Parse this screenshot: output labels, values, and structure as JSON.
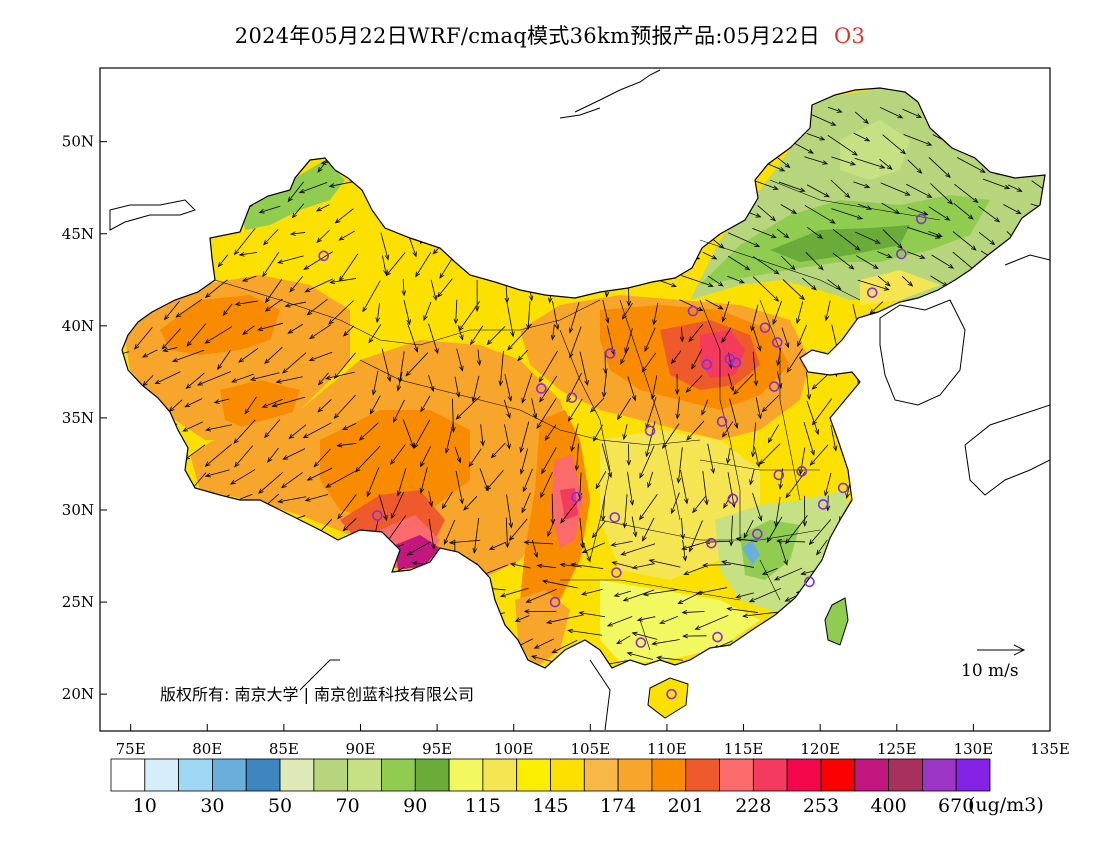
{
  "title": {
    "text": "2024年05月22日WRF/cmaq模式36km预报产品:05月22日",
    "species": "O3"
  },
  "axes": {
    "lat_labels": [
      "50N",
      "45N",
      "40N",
      "35N",
      "30N",
      "25N",
      "20N"
    ],
    "lat_values": [
      50,
      45,
      40,
      35,
      30,
      25,
      20
    ],
    "lon_labels": [
      "75E",
      "80E",
      "85E",
      "90E",
      "95E",
      "100E",
      "105E",
      "110E",
      "115E",
      "120E",
      "125E",
      "130E",
      "135E"
    ],
    "lon_values": [
      75,
      80,
      85,
      90,
      95,
      100,
      105,
      110,
      115,
      120,
      125,
      130,
      135
    ],
    "lon_range": [
      73,
      135
    ],
    "lat_range": [
      18,
      54
    ]
  },
  "wind_reference": {
    "label": "10 m/s",
    "speed": 10
  },
  "copyright": "版权所有: 南京大学 | 南京创蓝科技有限公司",
  "colorbar": {
    "colors": [
      "#ffffff",
      "#d5eefa",
      "#a0d8f4",
      "#6aafdb",
      "#3d86c0",
      "#dde9b7",
      "#b6d57c",
      "#c5e183",
      "#8fcc50",
      "#6aab3a",
      "#f1f860",
      "#f5e553",
      "#fbee00",
      "#fce100",
      "#f8b847",
      "#f8a52c",
      "#f98b00",
      "#ee5a2c",
      "#fb6b6b",
      "#f43a5d",
      "#f4064a",
      "#fb0000",
      "#c2177f",
      "#a8305d",
      "#9a35c6",
      "#8423e6"
    ],
    "labels": [
      "10",
      "30",
      "50",
      "70",
      "90",
      "115",
      "145",
      "174",
      "201",
      "228",
      "253",
      "400",
      "670"
    ],
    "units": "(ug/m3)"
  },
  "cities": [
    {
      "lon": 87.6,
      "lat": 43.8
    },
    {
      "lon": 91.1,
      "lat": 29.7
    },
    {
      "lon": 101.8,
      "lat": 36.6
    },
    {
      "lon": 103.8,
      "lat": 36.1
    },
    {
      "lon": 106.3,
      "lat": 38.5
    },
    {
      "lon": 104.1,
      "lat": 30.7
    },
    {
      "lon": 106.6,
      "lat": 29.6
    },
    {
      "lon": 102.7,
      "lat": 25.0
    },
    {
      "lon": 106.7,
      "lat": 26.6
    },
    {
      "lon": 108.9,
      "lat": 34.3
    },
    {
      "lon": 111.7,
      "lat": 40.8
    },
    {
      "lon": 112.6,
      "lat": 37.9
    },
    {
      "lon": 114.5,
      "lat": 38.0
    },
    {
      "lon": 116.4,
      "lat": 39.9
    },
    {
      "lon": 117.2,
      "lat": 39.1
    },
    {
      "lon": 117.0,
      "lat": 36.7
    },
    {
      "lon": 113.6,
      "lat": 34.8
    },
    {
      "lon": 114.3,
      "lat": 30.6
    },
    {
      "lon": 112.9,
      "lat": 28.2
    },
    {
      "lon": 115.9,
      "lat": 28.7
    },
    {
      "lon": 117.3,
      "lat": 31.9
    },
    {
      "lon": 118.8,
      "lat": 32.1
    },
    {
      "lon": 121.5,
      "lat": 31.2
    },
    {
      "lon": 120.2,
      "lat": 30.3
    },
    {
      "lon": 119.3,
      "lat": 26.1
    },
    {
      "lon": 113.3,
      "lat": 23.1
    },
    {
      "lon": 108.3,
      "lat": 22.8
    },
    {
      "lon": 110.3,
      "lat": 20.0
    },
    {
      "lon": 123.4,
      "lat": 41.8
    },
    {
      "lon": 125.3,
      "lat": 43.9
    },
    {
      "lon": 126.6,
      "lat": 45.8
    },
    {
      "lon": 114.1,
      "lat": 38.2
    }
  ]
}
